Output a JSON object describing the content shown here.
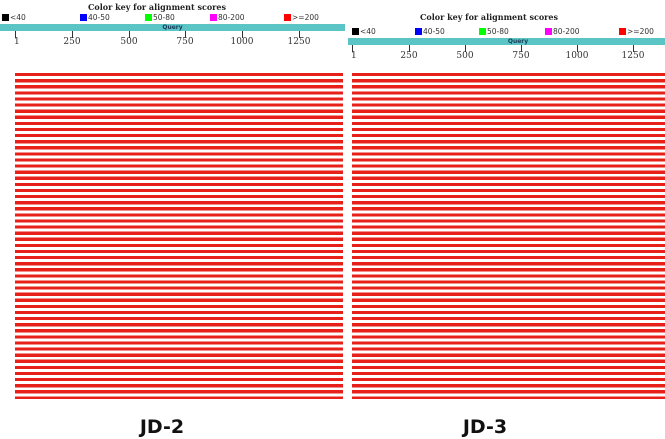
{
  "color_key": {
    "title": "Color key for alignment scores",
    "items": [
      {
        "label": "<40",
        "color": "#000000"
      },
      {
        "label": "40-50",
        "color": "#0000ff"
      },
      {
        "label": "50-80",
        "color": "#00ff00"
      },
      {
        "label": "80-200",
        "color": "#ff00ff"
      },
      {
        "label": ">=200",
        "color": "#ff0000"
      }
    ]
  },
  "query": {
    "label": "Query",
    "bar_color": "#5bc5c5",
    "ticks": [
      "1",
      "250",
      "500",
      "750",
      "1000",
      "1250"
    ]
  },
  "hits_color": "#e8201a",
  "panels": [
    {
      "label": "JD-2"
    },
    {
      "label": "JD-3"
    }
  ]
}
